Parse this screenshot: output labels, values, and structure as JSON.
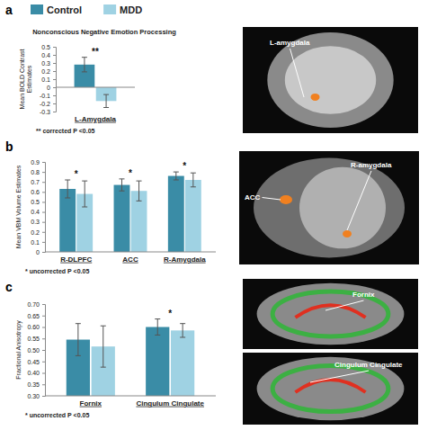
{
  "chart_data": [
    {
      "type": "bar",
      "panel": "a",
      "title": "Nonconscious Negative Emotion Processing",
      "y_label": "Mean BOLD Contrast Estimates",
      "categories": [
        "L-Amygdala"
      ],
      "series": [
        {
          "name": "Control",
          "color": "#3a8ca6",
          "values": [
            0.28
          ],
          "errors": [
            0.09
          ]
        },
        {
          "name": "MDD",
          "color": "#9fd2e3",
          "values": [
            -0.17
          ],
          "errors": [
            0.08
          ]
        }
      ],
      "ylim": [
        -0.3,
        0.5
      ],
      "yticks": [
        -0.3,
        -0.2,
        -0.1,
        0,
        0.1,
        0.2,
        0.3,
        0.4,
        0.5
      ],
      "legend": "top",
      "significance": [
        "**"
      ],
      "annotations": [
        "** corrected P <0.05",
        "L-amygdala"
      ]
    },
    {
      "type": "bar",
      "panel": "b",
      "y_label": "Mean VBM Volume Estimates",
      "categories": [
        "R-DLPFC",
        "ACC",
        "R-Amygdala"
      ],
      "series": [
        {
          "color": "#3a8ca6",
          "values": [
            0.63,
            0.67,
            0.76
          ],
          "errors": [
            0.09,
            0.06,
            0.04
          ]
        },
        {
          "color": "#9fd2e3",
          "values": [
            0.58,
            0.61,
            0.72
          ],
          "errors": [
            0.13,
            0.1,
            0.07
          ]
        }
      ],
      "ylim": [
        0,
        0.9
      ],
      "yticks": [
        0,
        0.1,
        0.2,
        0.3,
        0.4,
        0.5,
        0.6,
        0.7,
        0.8,
        0.9
      ],
      "significance": [
        "*",
        "*",
        "*"
      ],
      "annotations": [
        "* uncorrected P <0.05",
        "ACC",
        "R-amygdala"
      ]
    },
    {
      "type": "bar",
      "panel": "c",
      "y_label": "Fractional Anisotropy",
      "categories": [
        "Fornix",
        "Cingulum Cingulate"
      ],
      "series": [
        {
          "color": "#3a8ca6",
          "values": [
            0.545,
            0.6
          ],
          "errors": [
            0.07,
            0.035
          ]
        },
        {
          "color": "#9fd2e3",
          "values": [
            0.515,
            0.585
          ],
          "errors": [
            0.09,
            0.03
          ]
        }
      ],
      "ylim": [
        0.3,
        0.7
      ],
      "yticks": [
        {
          "value": 0.3,
          "label": "0.30"
        },
        {
          "value": 0.35,
          "label": "0.35"
        },
        {
          "value": 0.4,
          "label": "0.40"
        },
        {
          "value": 0.45,
          "label": "0.45"
        },
        {
          "value": 0.5,
          "label": "0.50"
        },
        {
          "value": 0.55,
          "label": "0.55"
        },
        {
          "value": 0.6,
          "label": "0.60"
        },
        {
          "value": 0.65,
          "label": "0.65"
        },
        {
          "value": 0.7,
          "label": "0.70"
        }
      ],
      "significance": [
        null,
        "*"
      ],
      "annotations": [
        "* uncorrected P <0.05",
        "Fornix",
        "Cingulum Cingulate"
      ]
    }
  ]
}
